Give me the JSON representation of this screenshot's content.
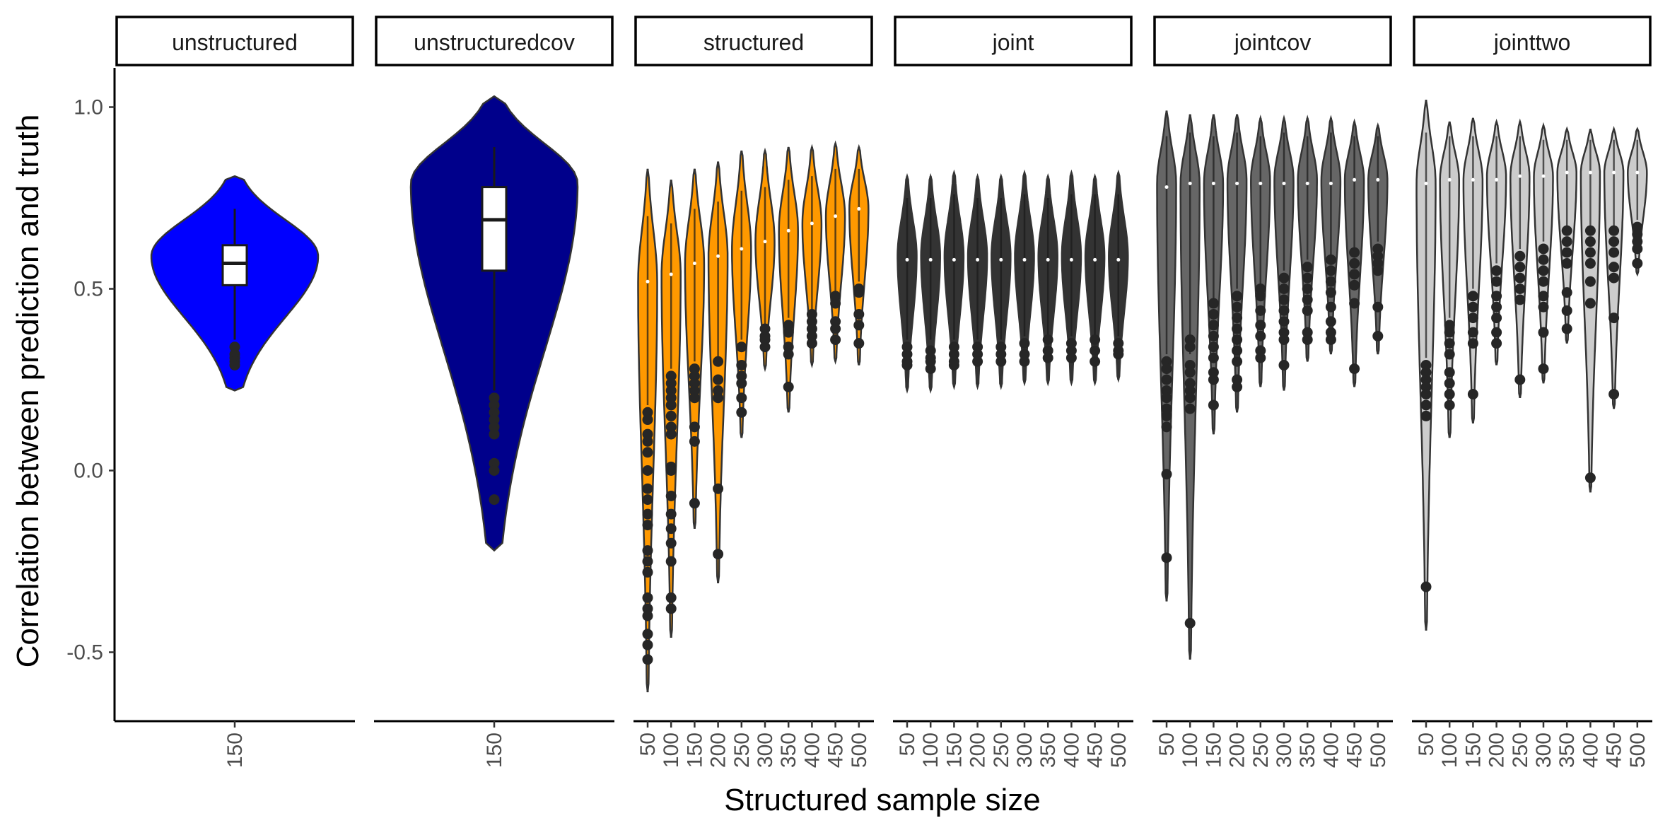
{
  "chart_data": {
    "type": "violin",
    "xlabel": "Structured sample size",
    "ylabel": "Correlation between prediction and truth",
    "ylim": [
      -0.68,
      1.1
    ],
    "yticks": [
      -0.5,
      0.0,
      0.5,
      1.0
    ],
    "ytick_labels": [
      "-0.5",
      "0.0",
      "0.5",
      "1.0"
    ],
    "grid": false,
    "legend": "none",
    "panels": [
      {
        "name": "unstructured",
        "fill": "#0000FF",
        "box": true,
        "groups": [
          {
            "x": "150",
            "median": 0.57,
            "q1": 0.51,
            "q3": 0.62,
            "lo": 0.36,
            "hi": 0.72,
            "min": 0.22,
            "max": 0.81,
            "mode": 0.59,
            "outliers": [
              0.34,
              0.32,
              0.31,
              0.3,
              0.29
            ]
          }
        ]
      },
      {
        "name": "unstructuredcov",
        "fill": "#00008B",
        "box": true,
        "groups": [
          {
            "x": "150",
            "median": 0.69,
            "q1": 0.55,
            "q3": 0.78,
            "lo": 0.22,
            "hi": 0.89,
            "min": -0.22,
            "max": 1.03,
            "mode": 0.79,
            "outliers": [
              0.2,
              0.18,
              0.16,
              0.14,
              0.12,
              0.1,
              0.02,
              0.0,
              -0.08
            ]
          }
        ]
      },
      {
        "name": "structured",
        "fill": "#FF9900",
        "box": false,
        "groups": [
          {
            "x": "50",
            "median": 0.52,
            "lo": 0.18,
            "hi": 0.7,
            "min": -0.61,
            "max": 0.83,
            "mode": 0.52,
            "outliers": [
              0.16,
              0.14,
              0.1,
              0.08,
              0.05,
              0.0,
              -0.05,
              -0.08,
              -0.12,
              -0.15,
              -0.22,
              -0.25,
              -0.28,
              -0.35,
              -0.38,
              -0.4,
              -0.45,
              -0.48,
              -0.52
            ]
          },
          {
            "x": "100",
            "median": 0.54,
            "lo": 0.28,
            "hi": 0.68,
            "min": -0.46,
            "max": 0.8,
            "mode": 0.54,
            "outliers": [
              0.26,
              0.24,
              0.22,
              0.2,
              0.18,
              0.15,
              0.12,
              0.1,
              0.01,
              0.0,
              -0.07,
              -0.12,
              -0.16,
              -0.2,
              -0.25,
              -0.35,
              -0.38
            ]
          },
          {
            "x": "150",
            "median": 0.57,
            "lo": 0.3,
            "hi": 0.72,
            "min": -0.16,
            "max": 0.83,
            "mode": 0.57,
            "outliers": [
              0.28,
              0.26,
              0.24,
              0.22,
              0.2,
              0.12,
              0.08,
              -0.09
            ]
          },
          {
            "x": "200",
            "median": 0.59,
            "lo": 0.31,
            "hi": 0.74,
            "min": -0.31,
            "max": 0.85,
            "mode": 0.59,
            "outliers": [
              0.3,
              0.25,
              0.22,
              0.2,
              -0.05,
              -0.23
            ]
          },
          {
            "x": "250",
            "median": 0.61,
            "lo": 0.36,
            "hi": 0.77,
            "min": 0.09,
            "max": 0.88,
            "mode": 0.61,
            "outliers": [
              0.34,
              0.29,
              0.26,
              0.24,
              0.2,
              0.16
            ]
          },
          {
            "x": "300",
            "median": 0.63,
            "lo": 0.4,
            "hi": 0.78,
            "min": 0.28,
            "max": 0.88,
            "mode": 0.63,
            "outliers": [
              0.39,
              0.37,
              0.36,
              0.34
            ]
          },
          {
            "x": "350",
            "median": 0.66,
            "lo": 0.42,
            "hi": 0.8,
            "min": 0.16,
            "max": 0.89,
            "mode": 0.66,
            "outliers": [
              0.4,
              0.38,
              0.34,
              0.32,
              0.23
            ]
          },
          {
            "x": "400",
            "median": 0.68,
            "lo": 0.44,
            "hi": 0.81,
            "min": 0.29,
            "max": 0.89,
            "mode": 0.68,
            "outliers": [
              0.43,
              0.41,
              0.39,
              0.37,
              0.35
            ]
          },
          {
            "x": "450",
            "median": 0.7,
            "lo": 0.49,
            "hi": 0.83,
            "min": 0.3,
            "max": 0.9,
            "mode": 0.7,
            "outliers": [
              0.48,
              0.46,
              0.41,
              0.39,
              0.36
            ]
          },
          {
            "x": "500",
            "median": 0.72,
            "lo": 0.52,
            "hi": 0.83,
            "min": 0.29,
            "max": 0.89,
            "mode": 0.72,
            "outliers": [
              0.5,
              0.49,
              0.43,
              0.4,
              0.35
            ]
          }
        ]
      },
      {
        "name": "joint",
        "fill": "#333333",
        "box": false,
        "groups": [
          {
            "x": "50",
            "median": 0.58,
            "lo": 0.36,
            "hi": 0.75,
            "min": 0.22,
            "max": 0.81,
            "mode": 0.59,
            "outliers": [
              0.34,
              0.32,
              0.3,
              0.29
            ]
          },
          {
            "x": "100",
            "median": 0.58,
            "lo": 0.36,
            "hi": 0.75,
            "min": 0.22,
            "max": 0.81,
            "mode": 0.59,
            "outliers": [
              0.33,
              0.31,
              0.3,
              0.28
            ]
          },
          {
            "x": "150",
            "median": 0.58,
            "lo": 0.36,
            "hi": 0.76,
            "min": 0.23,
            "max": 0.82,
            "mode": 0.59,
            "outliers": [
              0.34,
              0.32,
              0.3,
              0.29
            ]
          },
          {
            "x": "200",
            "median": 0.58,
            "lo": 0.36,
            "hi": 0.75,
            "min": 0.23,
            "max": 0.81,
            "mode": 0.59,
            "outliers": [
              0.34,
              0.32,
              0.3
            ]
          },
          {
            "x": "250",
            "median": 0.58,
            "lo": 0.36,
            "hi": 0.75,
            "min": 0.23,
            "max": 0.81,
            "mode": 0.59,
            "outliers": [
              0.34,
              0.32,
              0.3
            ]
          },
          {
            "x": "300",
            "median": 0.58,
            "lo": 0.37,
            "hi": 0.76,
            "min": 0.24,
            "max": 0.82,
            "mode": 0.59,
            "outliers": [
              0.35,
              0.32,
              0.3
            ]
          },
          {
            "x": "350",
            "median": 0.58,
            "lo": 0.37,
            "hi": 0.75,
            "min": 0.24,
            "max": 0.81,
            "mode": 0.59,
            "outliers": [
              0.36,
              0.33,
              0.31
            ]
          },
          {
            "x": "400",
            "median": 0.58,
            "lo": 0.37,
            "hi": 0.76,
            "min": 0.24,
            "max": 0.82,
            "mode": 0.59,
            "outliers": [
              0.35,
              0.33,
              0.31
            ]
          },
          {
            "x": "450",
            "median": 0.58,
            "lo": 0.37,
            "hi": 0.76,
            "min": 0.24,
            "max": 0.81,
            "mode": 0.59,
            "outliers": [
              0.36,
              0.33,
              0.3
            ]
          },
          {
            "x": "500",
            "median": 0.58,
            "lo": 0.37,
            "hi": 0.76,
            "min": 0.25,
            "max": 0.82,
            "mode": 0.59,
            "outliers": [
              0.35,
              0.33,
              0.32
            ]
          }
        ]
      },
      {
        "name": "jointcov",
        "fill": "#666666",
        "box": false,
        "groups": [
          {
            "x": "50",
            "median": 0.78,
            "lo": 0.32,
            "hi": 0.92,
            "min": -0.36,
            "max": 0.99,
            "mode": 0.79,
            "outliers": [
              0.3,
              0.28,
              0.25,
              0.22,
              0.2,
              0.17,
              0.15,
              0.12,
              -0.01,
              -0.24
            ]
          },
          {
            "x": "100",
            "median": 0.79,
            "lo": 0.32,
            "hi": 0.93,
            "min": -0.52,
            "max": 0.98,
            "mode": 0.79,
            "outliers": [
              0.36,
              0.34,
              0.29,
              0.27,
              0.24,
              0.22,
              0.2,
              0.17,
              -0.42
            ]
          },
          {
            "x": "150",
            "median": 0.79,
            "lo": 0.47,
            "hi": 0.92,
            "min": 0.1,
            "max": 0.98,
            "mode": 0.79,
            "outliers": [
              0.46,
              0.43,
              0.4,
              0.37,
              0.34,
              0.31,
              0.27,
              0.25,
              0.18
            ]
          },
          {
            "x": "200",
            "median": 0.79,
            "lo": 0.5,
            "hi": 0.93,
            "min": 0.16,
            "max": 0.98,
            "mode": 0.8,
            "outliers": [
              0.48,
              0.45,
              0.42,
              0.39,
              0.36,
              0.33,
              0.3,
              0.25,
              0.23
            ]
          },
          {
            "x": "250",
            "median": 0.79,
            "lo": 0.51,
            "hi": 0.92,
            "min": 0.23,
            "max": 0.97,
            "mode": 0.8,
            "outliers": [
              0.5,
              0.48,
              0.44,
              0.4,
              0.37,
              0.33,
              0.31
            ]
          },
          {
            "x": "300",
            "median": 0.79,
            "lo": 0.55,
            "hi": 0.93,
            "min": 0.22,
            "max": 0.97,
            "mode": 0.8,
            "outliers": [
              0.53,
              0.5,
              0.47,
              0.44,
              0.41,
              0.38,
              0.36,
              0.29
            ]
          },
          {
            "x": "350",
            "median": 0.79,
            "lo": 0.58,
            "hi": 0.92,
            "min": 0.3,
            "max": 0.97,
            "mode": 0.8,
            "outliers": [
              0.56,
              0.53,
              0.5,
              0.47,
              0.44,
              0.38,
              0.36
            ]
          },
          {
            "x": "400",
            "median": 0.79,
            "lo": 0.59,
            "hi": 0.93,
            "min": 0.32,
            "max": 0.97,
            "mode": 0.8,
            "outliers": [
              0.58,
              0.55,
              0.52,
              0.49,
              0.45,
              0.41,
              0.38,
              0.36
            ]
          },
          {
            "x": "450",
            "median": 0.8,
            "lo": 0.61,
            "hi": 0.92,
            "min": 0.23,
            "max": 0.96,
            "mode": 0.8,
            "outliers": [
              0.6,
              0.57,
              0.54,
              0.51,
              0.46,
              0.28
            ]
          },
          {
            "x": "500",
            "median": 0.8,
            "lo": 0.63,
            "hi": 0.92,
            "min": 0.32,
            "max": 0.95,
            "mode": 0.8,
            "outliers": [
              0.61,
              0.59,
              0.57,
              0.55,
              0.45,
              0.37
            ]
          }
        ]
      },
      {
        "name": "jointtwo",
        "fill": "#CCCCCC",
        "box": false,
        "groups": [
          {
            "x": "50",
            "median": 0.79,
            "lo": 0.31,
            "hi": 0.93,
            "min": -0.44,
            "max": 1.02,
            "mode": 0.79,
            "outliers": [
              0.29,
              0.27,
              0.25,
              0.23,
              0.21,
              0.18,
              0.15,
              -0.32
            ]
          },
          {
            "x": "100",
            "median": 0.8,
            "lo": 0.42,
            "hi": 0.92,
            "min": 0.09,
            "max": 0.96,
            "mode": 0.8,
            "outliers": [
              0.4,
              0.38,
              0.35,
              0.32,
              0.27,
              0.24,
              0.21,
              0.18
            ]
          },
          {
            "x": "150",
            "median": 0.8,
            "lo": 0.5,
            "hi": 0.92,
            "min": 0.13,
            "max": 0.97,
            "mode": 0.8,
            "outliers": [
              0.48,
              0.45,
              0.42,
              0.38,
              0.35,
              0.21
            ]
          },
          {
            "x": "200",
            "median": 0.8,
            "lo": 0.57,
            "hi": 0.92,
            "min": 0.29,
            "max": 0.96,
            "mode": 0.81,
            "outliers": [
              0.55,
              0.52,
              0.48,
              0.45,
              0.42,
              0.38,
              0.35
            ]
          },
          {
            "x": "250",
            "median": 0.81,
            "lo": 0.61,
            "hi": 0.92,
            "min": 0.2,
            "max": 0.96,
            "mode": 0.81,
            "outliers": [
              0.59,
              0.56,
              0.53,
              0.5,
              0.47,
              0.25
            ]
          },
          {
            "x": "300",
            "median": 0.81,
            "lo": 0.63,
            "hi": 0.91,
            "min": 0.24,
            "max": 0.95,
            "mode": 0.81,
            "outliers": [
              0.61,
              0.58,
              0.55,
              0.52,
              0.48,
              0.45,
              0.38,
              0.28
            ]
          },
          {
            "x": "350",
            "median": 0.82,
            "lo": 0.67,
            "hi": 0.91,
            "min": 0.35,
            "max": 0.94,
            "mode": 0.82,
            "outliers": [
              0.66,
              0.63,
              0.6,
              0.57,
              0.49,
              0.44,
              0.39
            ]
          },
          {
            "x": "400",
            "median": 0.82,
            "lo": 0.67,
            "hi": 0.91,
            "min": -0.06,
            "max": 0.94,
            "mode": 0.82,
            "outliers": [
              0.66,
              0.63,
              0.6,
              0.57,
              0.52,
              0.46,
              -0.02
            ]
          },
          {
            "x": "450",
            "median": 0.82,
            "lo": 0.67,
            "hi": 0.91,
            "min": 0.17,
            "max": 0.94,
            "mode": 0.82,
            "outliers": [
              0.66,
              0.63,
              0.6,
              0.56,
              0.53,
              0.42,
              0.21
            ]
          },
          {
            "x": "500",
            "median": 0.82,
            "lo": 0.69,
            "hi": 0.91,
            "min": 0.54,
            "max": 0.94,
            "mode": 0.82,
            "outliers": [
              0.67,
              0.65,
              0.63,
              0.61,
              0.57
            ]
          }
        ]
      }
    ]
  }
}
